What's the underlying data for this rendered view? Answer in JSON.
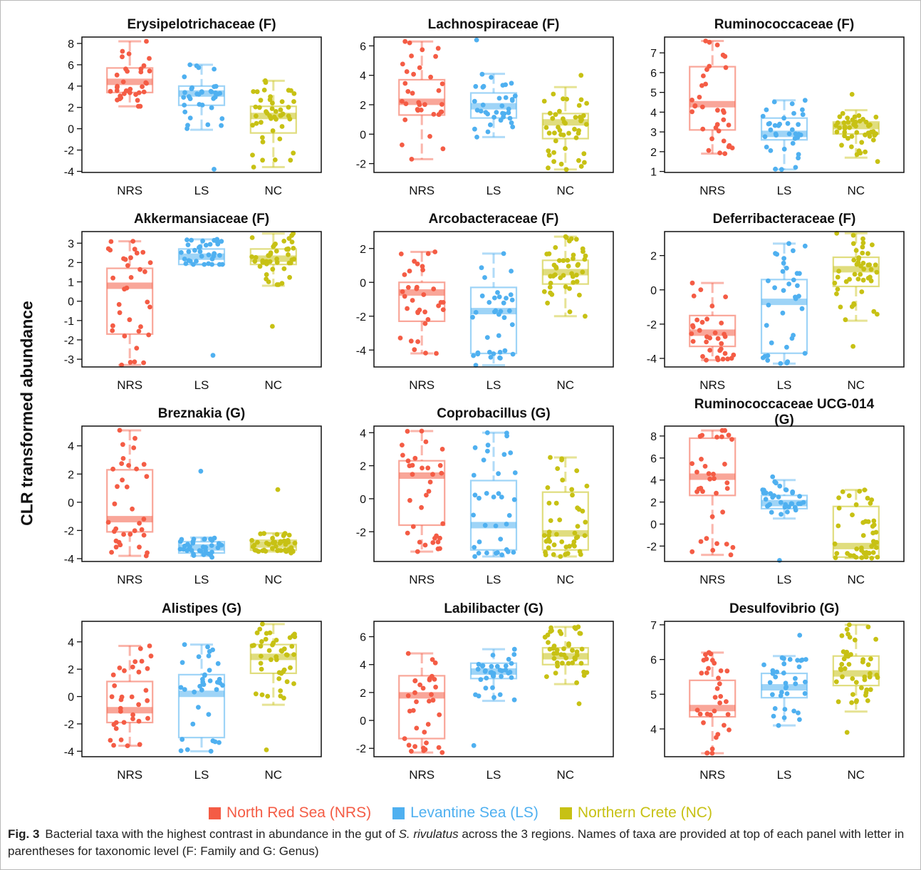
{
  "colors": {
    "NRS": "#F45C45",
    "LS": "#4FB0F0",
    "NC": "#C7C114"
  },
  "groups": [
    "NRS",
    "LS",
    "NC"
  ],
  "y_axis_label": "CLR transformed abundance",
  "legend": [
    {
      "key": "NRS",
      "label": "North Red Sea (NRS)"
    },
    {
      "key": "LS",
      "label": "Levantine Sea (LS)"
    },
    {
      "key": "NC",
      "label": "Northern Crete (NC)"
    }
  ],
  "caption": {
    "fig_label": "Fig. 3",
    "text_before": "Bacterial taxa with the highest contrast in abundance in the gut of ",
    "species": "S. rivulatus",
    "text_after": " across the 3 regions. Names of taxa are provided at top of each panel with letter in parentheses for taxonomic level (F: Family and G: Genus)"
  },
  "chart_data": [
    {
      "type": "box",
      "title": "Erysipelotrichaceae (F)",
      "ylim": [
        -4.1,
        8.6
      ],
      "yticks": [
        -4,
        -2,
        0,
        2,
        4,
        6,
        8
      ],
      "categories": [
        "NRS",
        "LS",
        "NC"
      ],
      "series": [
        {
          "name": "NRS",
          "min": 2.1,
          "q1": 3.4,
          "median": 4.4,
          "q3": 5.7,
          "max": 8.2,
          "n": 34,
          "obs_min": 2.1,
          "obs_max": 8.2
        },
        {
          "name": "LS",
          "min": -0.1,
          "q1": 2.2,
          "median": 3.3,
          "q3": 4.0,
          "max": 6.0,
          "n": 36,
          "obs_min": -3.8,
          "obs_max": 6.0
        },
        {
          "name": "NC",
          "min": -3.6,
          "q1": -0.4,
          "median": 1.2,
          "q3": 2.1,
          "max": 4.5,
          "n": 46,
          "obs_min": -3.6,
          "obs_max": 4.5
        }
      ]
    },
    {
      "type": "box",
      "title": "Lachnospiraceae (F)",
      "ylim": [
        -2.6,
        6.6
      ],
      "yticks": [
        -2,
        0,
        2,
        4,
        6
      ],
      "categories": [
        "NRS",
        "LS",
        "NC"
      ],
      "series": [
        {
          "name": "NRS",
          "min": -1.7,
          "q1": 1.3,
          "median": 2.2,
          "q3": 3.7,
          "max": 6.3,
          "n": 34,
          "obs_min": -1.7,
          "obs_max": 6.3
        },
        {
          "name": "LS",
          "min": -0.2,
          "q1": 1.1,
          "median": 1.9,
          "q3": 2.8,
          "max": 4.1,
          "n": 36,
          "obs_min": -0.2,
          "obs_max": 6.4
        },
        {
          "name": "NC",
          "min": -2.4,
          "q1": -0.3,
          "median": 0.8,
          "q3": 1.4,
          "max": 3.2,
          "n": 46,
          "obs_min": -2.4,
          "obs_max": 4.0
        }
      ]
    },
    {
      "type": "box",
      "title": "Ruminococcaceae (F)",
      "ylim": [
        0.95,
        7.8
      ],
      "yticks": [
        1,
        2,
        3,
        4,
        5,
        6,
        7
      ],
      "categories": [
        "NRS",
        "LS",
        "NC"
      ],
      "series": [
        {
          "name": "NRS",
          "min": 1.9,
          "q1": 3.1,
          "median": 4.4,
          "q3": 6.3,
          "max": 7.6,
          "n": 34,
          "obs_min": 1.9,
          "obs_max": 7.6
        },
        {
          "name": "LS",
          "min": 1.1,
          "q1": 2.6,
          "median": 2.9,
          "q3": 3.7,
          "max": 4.6,
          "n": 36,
          "obs_min": 1.1,
          "obs_max": 4.6
        },
        {
          "name": "NC",
          "min": 1.7,
          "q1": 2.9,
          "median": 3.3,
          "q3": 3.5,
          "max": 4.1,
          "n": 46,
          "obs_min": 1.5,
          "obs_max": 4.9
        }
      ]
    },
    {
      "type": "box",
      "title": "Akkermansiaceae (F)",
      "ylim": [
        -3.4,
        3.6
      ],
      "yticks": [
        -3,
        -2,
        -1,
        0,
        1,
        2,
        3
      ],
      "categories": [
        "NRS",
        "LS",
        "NC"
      ],
      "series": [
        {
          "name": "NRS",
          "min": -3.3,
          "q1": -1.7,
          "median": 0.8,
          "q3": 1.7,
          "max": 3.1,
          "n": 34,
          "obs_min": -3.3,
          "obs_max": 3.1
        },
        {
          "name": "LS",
          "min": 1.9,
          "q1": 1.9,
          "median": 2.3,
          "q3": 2.7,
          "max": 3.2,
          "n": 36,
          "obs_min": -2.8,
          "obs_max": 3.2
        },
        {
          "name": "NC",
          "min": 0.8,
          "q1": 1.9,
          "median": 2.2,
          "q3": 2.7,
          "max": 3.5,
          "n": 46,
          "obs_min": -1.3,
          "obs_max": 3.5
        }
      ]
    },
    {
      "type": "box",
      "title": "Arcobacteraceae (F)",
      "ylim": [
        -5.0,
        3.0
      ],
      "yticks": [
        -4,
        -2,
        0,
        2
      ],
      "categories": [
        "NRS",
        "LS",
        "NC"
      ],
      "series": [
        {
          "name": "NRS",
          "min": -4.2,
          "q1": -2.3,
          "median": -0.6,
          "q3": 0.0,
          "max": 1.8,
          "n": 34,
          "obs_min": -4.2,
          "obs_max": 1.8
        },
        {
          "name": "LS",
          "min": -4.9,
          "q1": -4.2,
          "median": -1.7,
          "q3": -0.3,
          "max": 1.7,
          "n": 36,
          "obs_min": -4.9,
          "obs_max": 1.7
        },
        {
          "name": "NC",
          "min": -2.0,
          "q1": -0.1,
          "median": 0.6,
          "q3": 1.3,
          "max": 2.7,
          "n": 46,
          "obs_min": -2.0,
          "obs_max": 2.7
        }
      ]
    },
    {
      "type": "box",
      "title": "Deferribacteraceae (F)",
      "ylim": [
        -4.5,
        3.4
      ],
      "yticks": [
        -4,
        -2,
        0,
        2
      ],
      "categories": [
        "NRS",
        "LS",
        "NC"
      ],
      "series": [
        {
          "name": "NRS",
          "min": -4.1,
          "q1": -3.3,
          "median": -2.5,
          "q3": -1.5,
          "max": 0.4,
          "n": 34,
          "obs_min": -4.1,
          "obs_max": 0.4
        },
        {
          "name": "LS",
          "min": -4.3,
          "q1": -3.7,
          "median": -0.7,
          "q3": 0.6,
          "max": 2.7,
          "n": 36,
          "obs_min": -4.3,
          "obs_max": 2.7
        },
        {
          "name": "NC",
          "min": -1.8,
          "q1": 0.2,
          "median": 1.2,
          "q3": 1.9,
          "max": 3.3,
          "n": 46,
          "obs_min": -3.3,
          "obs_max": 3.3
        }
      ]
    },
    {
      "type": "box",
      "title": "Breznakia (G)",
      "ylim": [
        -4.2,
        5.4
      ],
      "yticks": [
        -4,
        -2,
        0,
        2,
        4
      ],
      "categories": [
        "NRS",
        "LS",
        "NC"
      ],
      "series": [
        {
          "name": "NRS",
          "min": -3.8,
          "q1": -2.1,
          "median": -1.2,
          "q3": 2.3,
          "max": 5.1,
          "n": 34,
          "obs_min": -3.8,
          "obs_max": 5.1
        },
        {
          "name": "LS",
          "min": -3.8,
          "q1": -3.6,
          "median": -3.2,
          "q3": -2.8,
          "max": -2.5,
          "n": 36,
          "obs_min": -3.9,
          "obs_max": 2.2
        },
        {
          "name": "NC",
          "min": -3.5,
          "q1": -3.4,
          "median": -3.0,
          "q3": -2.7,
          "max": -2.2,
          "n": 46,
          "obs_min": -3.6,
          "obs_max": 0.9
        }
      ]
    },
    {
      "type": "box",
      "title": "Coprobacillus (G)",
      "ylim": [
        -3.8,
        4.4
      ],
      "yticks": [
        -2,
        0,
        2,
        4
      ],
      "categories": [
        "NRS",
        "LS",
        "NC"
      ],
      "series": [
        {
          "name": "NRS",
          "min": -3.2,
          "q1": -1.6,
          "median": 1.4,
          "q3": 2.3,
          "max": 4.1,
          "n": 34,
          "obs_min": -3.2,
          "obs_max": 4.1
        },
        {
          "name": "LS",
          "min": -3.5,
          "q1": -3.1,
          "median": -1.6,
          "q3": 1.1,
          "max": 4.0,
          "n": 36,
          "obs_min": -3.5,
          "obs_max": 4.0
        },
        {
          "name": "NC",
          "min": -3.5,
          "q1": -3.1,
          "median": -2.1,
          "q3": 0.4,
          "max": 2.5,
          "n": 46,
          "obs_min": -3.5,
          "obs_max": 2.5
        }
      ]
    },
    {
      "type": "box",
      "title": "Ruminococcaceae UCG-014 (G)",
      "ylim": [
        -3.4,
        8.9
      ],
      "yticks": [
        -2,
        0,
        2,
        4,
        6,
        8
      ],
      "categories": [
        "NRS",
        "LS",
        "NC"
      ],
      "series": [
        {
          "name": "NRS",
          "min": -2.8,
          "q1": 2.6,
          "median": 4.3,
          "q3": 7.8,
          "max": 8.5,
          "n": 34,
          "obs_min": -2.8,
          "obs_max": 8.5
        },
        {
          "name": "LS",
          "min": 0.5,
          "q1": 1.4,
          "median": 1.9,
          "q3": 2.6,
          "max": 4.0,
          "n": 36,
          "obs_min": -3.3,
          "obs_max": 4.3
        },
        {
          "name": "NC",
          "min": -3.1,
          "q1": -3.0,
          "median": -2.0,
          "q3": 1.6,
          "max": 3.1,
          "n": 46,
          "obs_min": -3.1,
          "obs_max": 3.1
        }
      ]
    },
    {
      "type": "box",
      "title": "Alistipes (G)",
      "ylim": [
        -4.4,
        5.5
      ],
      "yticks": [
        -4,
        -2,
        0,
        2,
        4
      ],
      "categories": [
        "NRS",
        "LS",
        "NC"
      ],
      "series": [
        {
          "name": "NRS",
          "min": -3.6,
          "q1": -1.9,
          "median": -1.0,
          "q3": 1.1,
          "max": 3.7,
          "n": 34,
          "obs_min": -3.6,
          "obs_max": 3.7
        },
        {
          "name": "LS",
          "min": -4.0,
          "q1": -3.0,
          "median": 0.2,
          "q3": 1.6,
          "max": 3.8,
          "n": 36,
          "obs_min": -4.0,
          "obs_max": 3.8
        },
        {
          "name": "NC",
          "min": -0.6,
          "q1": 1.7,
          "median": 2.9,
          "q3": 3.8,
          "max": 5.3,
          "n": 46,
          "obs_min": -3.9,
          "obs_max": 5.3
        }
      ]
    },
    {
      "type": "box",
      "title": "Labilibacter (G)",
      "ylim": [
        -2.6,
        7.1
      ],
      "yticks": [
        -2,
        0,
        2,
        4,
        6
      ],
      "categories": [
        "NRS",
        "LS",
        "NC"
      ],
      "series": [
        {
          "name": "NRS",
          "min": -2.3,
          "q1": -1.3,
          "median": 1.8,
          "q3": 3.2,
          "max": 4.8,
          "n": 34,
          "obs_min": -2.3,
          "obs_max": 4.8
        },
        {
          "name": "LS",
          "min": 1.4,
          "q1": 3.0,
          "median": 3.5,
          "q3": 4.1,
          "max": 5.1,
          "n": 36,
          "obs_min": -1.8,
          "obs_max": 5.1
        },
        {
          "name": "NC",
          "min": 2.6,
          "q1": 4.0,
          "median": 4.6,
          "q3": 5.2,
          "max": 6.7,
          "n": 46,
          "obs_min": 1.2,
          "obs_max": 6.7
        }
      ]
    },
    {
      "type": "box",
      "title": "Desulfovibrio (G)",
      "ylim": [
        3.2,
        7.1
      ],
      "yticks": [
        4,
        5,
        6,
        7
      ],
      "categories": [
        "NRS",
        "LS",
        "NC"
      ],
      "series": [
        {
          "name": "NRS",
          "min": 3.3,
          "q1": 4.35,
          "median": 4.6,
          "q3": 5.4,
          "max": 6.2,
          "n": 34,
          "obs_min": 3.3,
          "obs_max": 6.2
        },
        {
          "name": "LS",
          "min": 4.1,
          "q1": 4.9,
          "median": 5.2,
          "q3": 5.6,
          "max": 6.1,
          "n": 36,
          "obs_min": 4.1,
          "obs_max": 6.7
        },
        {
          "name": "NC",
          "min": 4.5,
          "q1": 5.25,
          "median": 5.6,
          "q3": 6.1,
          "max": 7.0,
          "n": 46,
          "obs_min": 3.9,
          "obs_max": 7.0
        }
      ]
    }
  ]
}
